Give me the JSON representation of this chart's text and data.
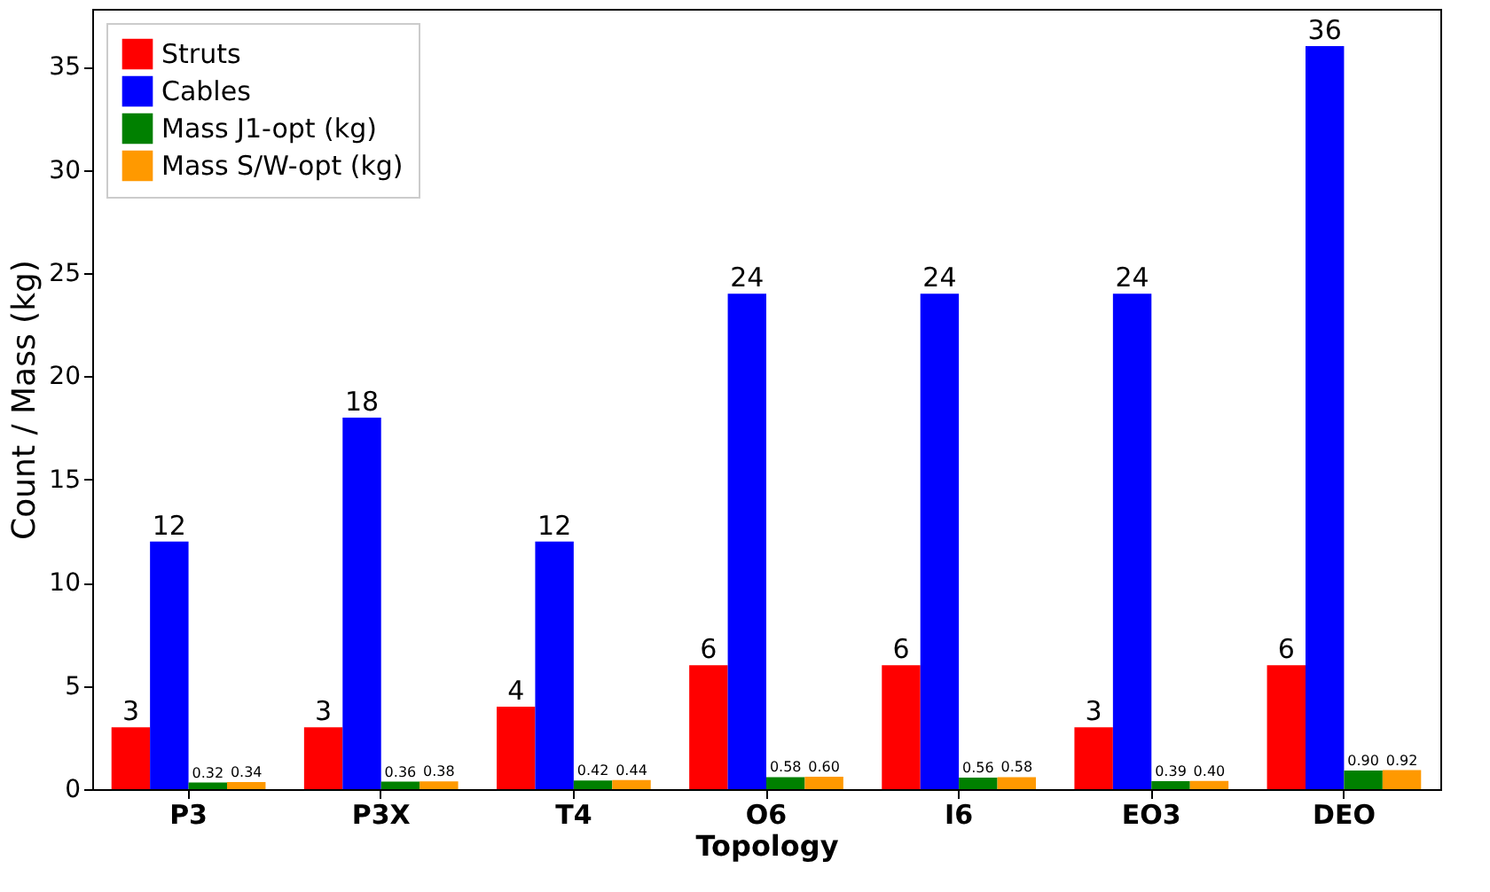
{
  "chart_data": {
    "type": "bar",
    "xlabel": "Topology",
    "ylabel": "Count / Mass (kg)",
    "categories": [
      "P3",
      "P3X",
      "T4",
      "O6",
      "I6",
      "EO3",
      "DEO"
    ],
    "series": [
      {
        "name": "Struts",
        "color": "#ff0000",
        "values": [
          3,
          3,
          4,
          6,
          6,
          3,
          6
        ],
        "value_labels": [
          "3",
          "3",
          "4",
          "6",
          "6",
          "3",
          "6"
        ]
      },
      {
        "name": "Cables",
        "color": "#0000ff",
        "values": [
          12,
          18,
          12,
          24,
          24,
          24,
          36
        ],
        "value_labels": [
          "12",
          "18",
          "12",
          "24",
          "24",
          "24",
          "36"
        ]
      },
      {
        "name": "Mass J1-opt (kg)",
        "color": "#008000",
        "values": [
          0.32,
          0.36,
          0.42,
          0.58,
          0.56,
          0.39,
          0.9
        ],
        "value_labels": [
          "0.32",
          "0.36",
          "0.42",
          "0.58",
          "0.56",
          "0.39",
          "0.90"
        ]
      },
      {
        "name": "Mass S/W-opt (kg)",
        "color": "#ff9900",
        "values": [
          0.34,
          0.38,
          0.44,
          0.6,
          0.58,
          0.4,
          0.92
        ],
        "value_labels": [
          "0.34",
          "0.38",
          "0.44",
          "0.60",
          "0.58",
          "0.40",
          "0.92"
        ]
      }
    ],
    "ylim": [
      0,
      37.8
    ],
    "yticks": [
      0,
      5,
      10,
      15,
      20,
      25,
      30,
      35
    ],
    "grid": false,
    "legend": "top left"
  }
}
